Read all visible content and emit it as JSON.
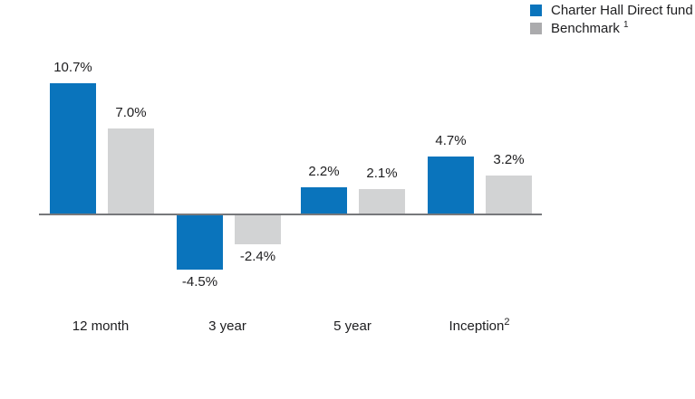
{
  "chart_data": {
    "type": "bar",
    "title": "",
    "unit": "%",
    "grid": false,
    "legend_position": "top-right",
    "axis_color": "#77787b",
    "text_color": "#1d1d1f",
    "ylim": [
      -5.5,
      12
    ],
    "categories": [
      {
        "label": "12 month",
        "sup": ""
      },
      {
        "label": "3 year",
        "sup": ""
      },
      {
        "label": "5 year",
        "sup": ""
      },
      {
        "label": "Inception",
        "sup": "2"
      }
    ],
    "series": [
      {
        "name": "Charter Hall Direct fund",
        "name_sup": "",
        "color": "#0a74bc",
        "legend_color": "#0a74bc",
        "values": [
          10.7,
          -4.5,
          2.2,
          4.7
        ],
        "value_labels": [
          "10.7%",
          "-4.5%",
          "2.2%",
          "4.7%"
        ]
      },
      {
        "name": "Benchmark",
        "name_sup": "1",
        "color": "#d2d3d4",
        "legend_color": "#ababad",
        "values": [
          7.0,
          -2.4,
          2.1,
          3.2
        ],
        "value_labels": [
          "7.0%",
          "-2.4%",
          "2.1%",
          "3.2%"
        ]
      }
    ]
  }
}
